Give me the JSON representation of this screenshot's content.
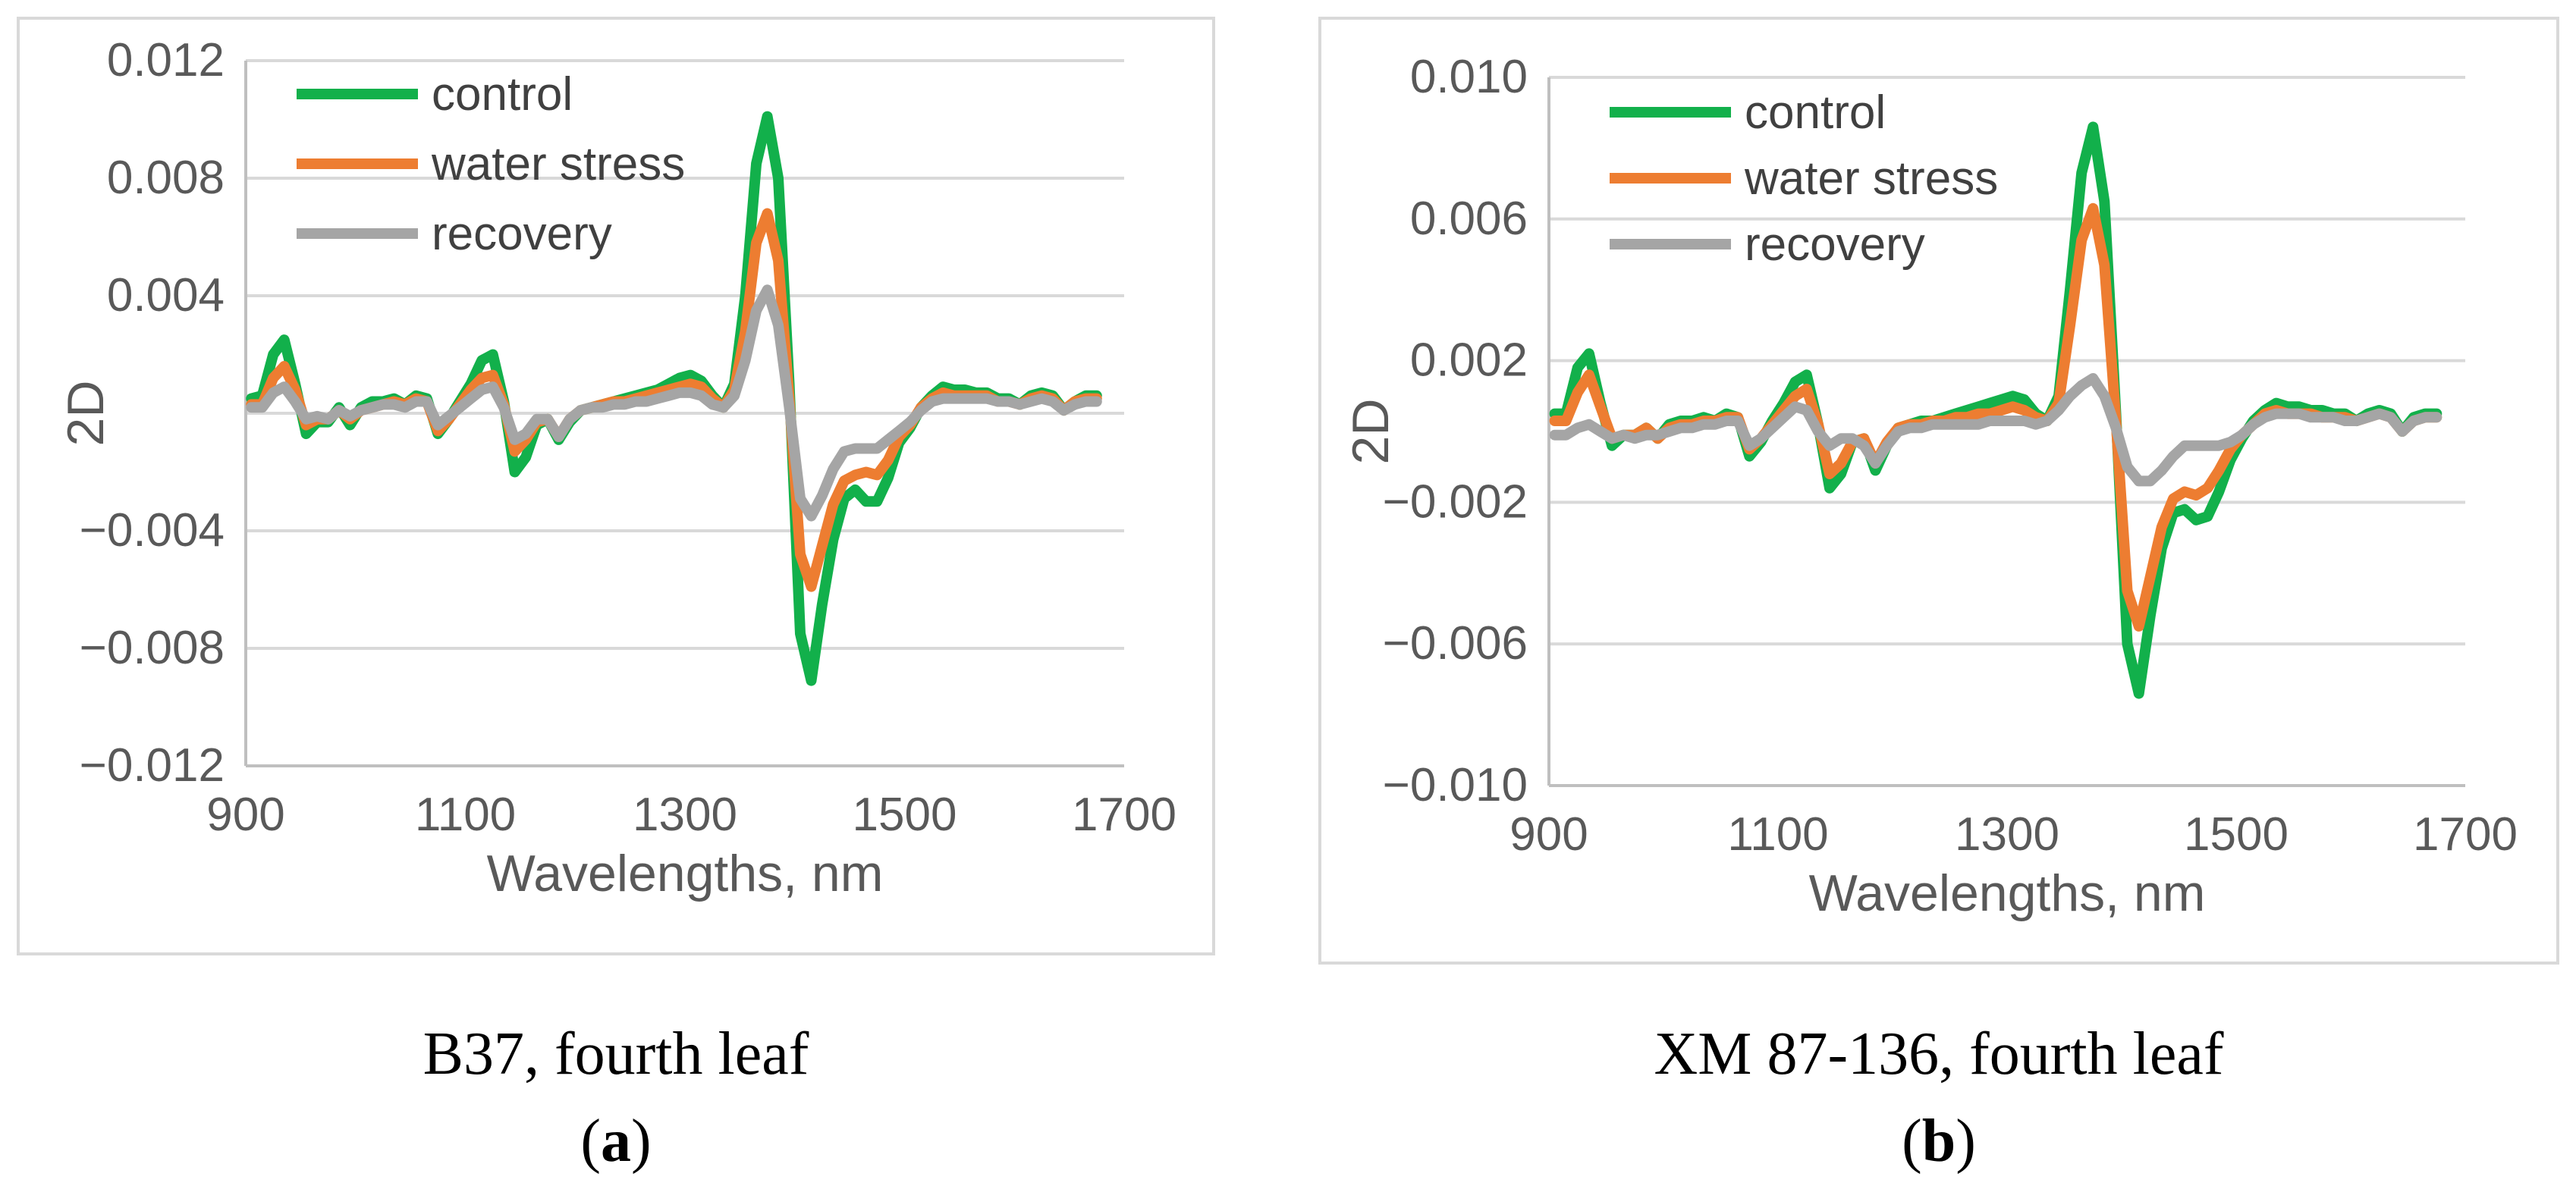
{
  "colors": {
    "control": "#12b04b",
    "water_stress": "#ed7d31",
    "recovery": "#a5a5a5",
    "grid": "#d9d9d9",
    "axis": "#bfbfbf",
    "text": "#595959"
  },
  "panels": [
    {
      "id": "a",
      "caption": "B37, fourth leaf",
      "sub_letter": "a"
    },
    {
      "id": "b",
      "caption": "XM 87-136, fourth leaf",
      "sub_letter": "b"
    }
  ],
  "chart_data": [
    {
      "type": "line",
      "ylabel": "2D",
      "xlabel": "Wavelengths, nm",
      "xlim": [
        900,
        1700
      ],
      "ylim": [
        -0.012,
        0.012
      ],
      "xticks": [
        900,
        1100,
        1300,
        1500,
        1700
      ],
      "xtick_labels": [
        "900",
        "1100",
        "1300",
        "1500",
        "1700"
      ],
      "yticks": [
        0.012,
        0.008,
        0.004,
        0,
        -0.004,
        -0.008,
        -0.012
      ],
      "ytick_labels": [
        "0.012",
        "0.008",
        "0.004",
        "",
        "−0.004",
        "−0.008",
        "−0.012"
      ],
      "legend_position": "top-left",
      "x": [
        905,
        915,
        925,
        935,
        945,
        955,
        965,
        975,
        985,
        995,
        1005,
        1015,
        1025,
        1035,
        1045,
        1055,
        1065,
        1075,
        1085,
        1095,
        1105,
        1115,
        1125,
        1135,
        1145,
        1155,
        1165,
        1175,
        1185,
        1195,
        1205,
        1215,
        1225,
        1235,
        1245,
        1255,
        1265,
        1275,
        1285,
        1295,
        1305,
        1315,
        1325,
        1335,
        1345,
        1355,
        1365,
        1375,
        1385,
        1395,
        1405,
        1415,
        1425,
        1435,
        1445,
        1455,
        1465,
        1475,
        1485,
        1495,
        1505,
        1515,
        1525,
        1535,
        1545,
        1555,
        1565,
        1575,
        1585,
        1595,
        1605,
        1615,
        1625,
        1635,
        1645,
        1655,
        1665,
        1675
      ],
      "series": [
        {
          "name": "control",
          "values": [
            0.0005,
            0.0006,
            0.002,
            0.0025,
            0.001,
            -0.0007,
            -0.0003,
            -0.0003,
            0.0002,
            -0.0004,
            0.0002,
            0.0004,
            0.0004,
            0.0005,
            0.0003,
            0.0006,
            0.0005,
            -0.0007,
            -0.0002,
            0.0004,
            0.001,
            0.0018,
            0.002,
            0.0004,
            -0.002,
            -0.0015,
            -0.0004,
            -0.0002,
            -0.0009,
            -0.0003,
            0.0001,
            0.0002,
            0.0003,
            0.0004,
            0.0005,
            0.0006,
            0.0007,
            0.0008,
            0.001,
            0.0012,
            0.0013,
            0.0011,
            0.0006,
            0.0002,
            0.001,
            0.004,
            0.0085,
            0.0101,
            0.008,
            0.001,
            -0.0075,
            -0.0091,
            -0.0065,
            -0.0043,
            -0.0029,
            -0.0026,
            -0.003,
            -0.003,
            -0.0022,
            -0.001,
            -0.0005,
            0.0002,
            0.0006,
            0.0009,
            0.0008,
            0.0008,
            0.0007,
            0.0007,
            0.0005,
            0.0005,
            0.0003,
            0.0006,
            0.0007,
            0.0006,
            0.0001,
            0.0004,
            0.0006,
            0.0006
          ]
        },
        {
          "name": "water stress",
          "values": [
            0.0003,
            0.0003,
            0.0012,
            0.0016,
            0.0008,
            -0.0004,
            -0.0002,
            -0.0002,
            0.0001,
            -0.0002,
            0.0001,
            0.0002,
            0.0003,
            0.0004,
            0.0003,
            0.0005,
            0.0004,
            -0.0006,
            -0.0002,
            0.0003,
            0.0008,
            0.0012,
            0.0013,
            0.0003,
            -0.0013,
            -0.0009,
            -0.0003,
            -0.0002,
            -0.0008,
            -0.0002,
            0.0001,
            0.0002,
            0.0003,
            0.0004,
            0.0004,
            0.0005,
            0.0006,
            0.0007,
            0.0008,
            0.0009,
            0.001,
            0.0009,
            0.0005,
            0.0002,
            0.0008,
            0.0028,
            0.0058,
            0.0068,
            0.0052,
            0.0005,
            -0.0048,
            -0.0059,
            -0.0045,
            -0.0031,
            -0.0023,
            -0.0021,
            -0.002,
            -0.0021,
            -0.0016,
            -0.0008,
            -0.0004,
            0.0002,
            0.0005,
            0.0007,
            0.0006,
            0.0006,
            0.0006,
            0.0006,
            0.0004,
            0.0004,
            0.0003,
            0.0005,
            0.0006,
            0.0005,
            0.0001,
            0.0004,
            0.0005,
            0.0005
          ]
        },
        {
          "name": "recovery",
          "values": [
            0.0002,
            0.0002,
            0.0007,
            0.0009,
            0.0004,
            -0.0002,
            -0.0001,
            -0.0002,
            0.0001,
            -0.0001,
            0.0001,
            0.0002,
            0.0003,
            0.0003,
            0.0002,
            0.0004,
            0.0004,
            -0.0004,
            -0.0001,
            0.0002,
            0.0005,
            0.0008,
            0.0009,
            0.0002,
            -0.0009,
            -0.0007,
            -0.0002,
            -0.0002,
            -0.0008,
            -0.0002,
            0.0001,
            0.0002,
            0.0002,
            0.0003,
            0.0003,
            0.0004,
            0.0004,
            0.0005,
            0.0006,
            0.0007,
            0.0007,
            0.0006,
            0.0003,
            0.0002,
            0.0006,
            0.0018,
            0.0035,
            0.0042,
            0.003,
            0.0002,
            -0.0029,
            -0.0035,
            -0.0028,
            -0.0019,
            -0.0013,
            -0.0012,
            -0.0012,
            -0.0012,
            -0.0009,
            -0.0006,
            -0.0003,
            0.0001,
            0.0004,
            0.0005,
            0.0005,
            0.0005,
            0.0005,
            0.0005,
            0.0004,
            0.0004,
            0.0003,
            0.0004,
            0.0005,
            0.0004,
            0.0001,
            0.0003,
            0.0004,
            0.0004
          ]
        }
      ]
    },
    {
      "type": "line",
      "ylabel": "2D",
      "xlabel": "Wavelengths, nm",
      "xlim": [
        900,
        1700
      ],
      "ylim": [
        -0.01,
        0.01
      ],
      "xticks": [
        900,
        1100,
        1300,
        1500,
        1700
      ],
      "xtick_labels": [
        "900",
        "1100",
        "1300",
        "1500",
        "1700"
      ],
      "yticks": [
        0.01,
        0.006,
        0.002,
        -0.002,
        -0.006,
        -0.01
      ],
      "ytick_labels": [
        "0.010",
        "0.006",
        "0.002",
        "−0.002",
        "−0.006",
        "−0.010"
      ],
      "legend_position": "top-left",
      "x": [
        905,
        915,
        925,
        935,
        945,
        955,
        965,
        975,
        985,
        995,
        1005,
        1015,
        1025,
        1035,
        1045,
        1055,
        1065,
        1075,
        1085,
        1095,
        1105,
        1115,
        1125,
        1135,
        1145,
        1155,
        1165,
        1175,
        1185,
        1195,
        1205,
        1215,
        1225,
        1235,
        1245,
        1255,
        1265,
        1275,
        1285,
        1295,
        1305,
        1315,
        1325,
        1335,
        1345,
        1355,
        1365,
        1375,
        1385,
        1395,
        1405,
        1415,
        1425,
        1435,
        1445,
        1455,
        1465,
        1475,
        1485,
        1495,
        1505,
        1515,
        1525,
        1535,
        1545,
        1555,
        1565,
        1575,
        1585,
        1595,
        1605,
        1615,
        1625,
        1635,
        1645,
        1655,
        1665,
        1675
      ],
      "series": [
        {
          "name": "control",
          "values": [
            0.0005,
            0.0005,
            0.0018,
            0.0022,
            0.0008,
            -0.0004,
            -0.0001,
            -0.0001,
            0.0001,
            -0.0002,
            0.0002,
            0.0003,
            0.0003,
            0.0004,
            0.0003,
            0.0005,
            0.0004,
            -0.0007,
            -0.0003,
            0.0003,
            0.0008,
            0.0014,
            0.0016,
            0.0002,
            -0.0016,
            -0.0012,
            -0.0003,
            -0.0002,
            -0.0011,
            -0.0004,
            0.0001,
            0.0002,
            0.0003,
            0.0003,
            0.0004,
            0.0005,
            0.0006,
            0.0007,
            0.0008,
            0.0009,
            0.001,
            0.0009,
            0.0005,
            0.0003,
            0.001,
            0.004,
            0.0073,
            0.0086,
            0.0065,
            0.0005,
            -0.006,
            -0.0074,
            -0.0052,
            -0.0033,
            -0.0023,
            -0.0022,
            -0.0025,
            -0.0024,
            -0.0017,
            -0.0008,
            -0.0002,
            0.0003,
            0.0006,
            0.0008,
            0.0007,
            0.0007,
            0.0006,
            0.0006,
            0.0005,
            0.0005,
            0.0003,
            0.0005,
            0.0006,
            0.0005,
            0.0,
            0.0004,
            0.0005,
            0.0005
          ]
        },
        {
          "name": "water stress",
          "values": [
            0.0003,
            0.0003,
            0.0011,
            0.0016,
            0.0007,
            -0.0002,
            -0.0001,
            -0.0001,
            0.0001,
            -0.0002,
            0.0001,
            0.0002,
            0.0002,
            0.0003,
            0.0003,
            0.0004,
            0.0004,
            -0.0005,
            -0.0002,
            0.0002,
            0.0006,
            0.001,
            0.0012,
            0.0002,
            -0.0012,
            -0.0009,
            -0.0003,
            -0.0002,
            -0.0009,
            -0.0003,
            0.0001,
            0.0002,
            0.0002,
            0.0003,
            0.0003,
            0.0004,
            0.0004,
            0.0005,
            0.0005,
            0.0006,
            0.0007,
            0.0006,
            0.0004,
            0.0003,
            0.0008,
            0.003,
            0.0054,
            0.0063,
            0.0047,
            0.0003,
            -0.0045,
            -0.0055,
            -0.0041,
            -0.0027,
            -0.0019,
            -0.0017,
            -0.0018,
            -0.0016,
            -0.0011,
            -0.0005,
            -0.0001,
            0.0002,
            0.0005,
            0.0006,
            0.0005,
            0.0005,
            0.0005,
            0.0004,
            0.0004,
            0.0004,
            0.0003,
            0.0004,
            0.0005,
            0.0004,
            0.0,
            0.0003,
            0.0004,
            0.0004
          ]
        },
        {
          "name": "recovery",
          "values": [
            -0.0001,
            -0.0001,
            0.0001,
            0.0002,
            0.0,
            -0.0002,
            -0.0001,
            -0.0002,
            -0.0001,
            -0.0001,
            0.0,
            0.0001,
            0.0001,
            0.0002,
            0.0002,
            0.0003,
            0.0003,
            -0.0004,
            -0.0002,
            0.0001,
            0.0004,
            0.0007,
            0.0006,
            0.0,
            -0.0004,
            -0.0002,
            -0.0002,
            -0.0004,
            -0.0009,
            -0.0004,
            0.0,
            0.0001,
            0.0001,
            0.0002,
            0.0002,
            0.0002,
            0.0002,
            0.0002,
            0.0003,
            0.0003,
            0.0003,
            0.0003,
            0.0002,
            0.0003,
            0.0006,
            0.001,
            0.0013,
            0.0015,
            0.001,
            0.0001,
            -0.001,
            -0.0014,
            -0.0014,
            -0.0011,
            -0.0007,
            -0.0004,
            -0.0004,
            -0.0004,
            -0.0004,
            -0.0003,
            -0.0001,
            0.0002,
            0.0004,
            0.0005,
            0.0005,
            0.0005,
            0.0004,
            0.0004,
            0.0004,
            0.0003,
            0.0003,
            0.0004,
            0.0005,
            0.0004,
            0.0,
            0.0003,
            0.0004,
            0.0004
          ]
        }
      ]
    }
  ]
}
